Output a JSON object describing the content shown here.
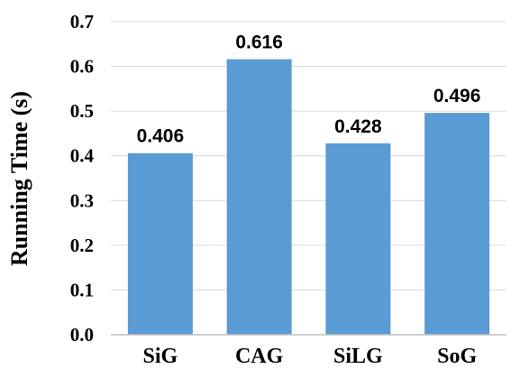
{
  "chart_data": {
    "type": "bar",
    "title": "",
    "xlabel": "",
    "ylabel": "Running Time (s)",
    "categories": [
      "SiG",
      "CAG",
      "SiLG",
      "SoG"
    ],
    "values": [
      0.406,
      0.616,
      0.428,
      0.496
    ],
    "data_labels": [
      "0.406",
      "0.616",
      "0.428",
      "0.496"
    ],
    "yticks": [
      "0.0",
      "0.1",
      "0.2",
      "0.3",
      "0.4",
      "0.5",
      "0.6",
      "0.7"
    ],
    "ylim": [
      0,
      0.7
    ],
    "grid": true,
    "legend": "none",
    "colors": {
      "bar": "#5b9bd5",
      "grid": "#d9d9d9",
      "axis": "#bfbfbf"
    }
  }
}
